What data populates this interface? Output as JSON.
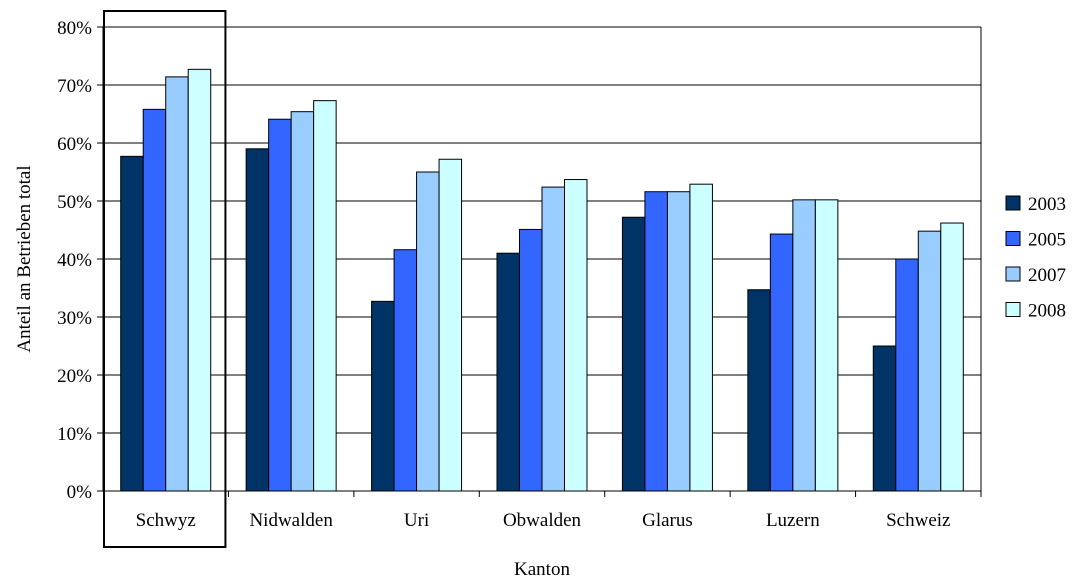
{
  "chart_data": {
    "type": "bar",
    "title": "",
    "xlabel": "Kanton",
    "ylabel": "Anteil an Betrieben total",
    "categories": [
      "Schwyz",
      "Nidwalden",
      "Uri",
      "Obwalden",
      "Glarus",
      "Luzern",
      "Schweiz"
    ],
    "yticks": [
      "0%",
      "10%",
      "20%",
      "30%",
      "40%",
      "50%",
      "60%",
      "70%",
      "80%"
    ],
    "ylim": [
      0,
      80
    ],
    "grid": true,
    "legend_position": "right",
    "highlighted_category": "Schwyz",
    "series": [
      {
        "name": "2003",
        "color": "#003366",
        "values": [
          57.7,
          59.0,
          32.7,
          41.0,
          47.2,
          34.7,
          25.0
        ]
      },
      {
        "name": "2005",
        "color": "#3366ff",
        "values": [
          65.8,
          64.1,
          41.6,
          45.1,
          51.6,
          44.3,
          40.0
        ]
      },
      {
        "name": "2007",
        "color": "#99ccff",
        "values": [
          71.4,
          65.4,
          55.0,
          52.4,
          51.6,
          50.2,
          44.8
        ]
      },
      {
        "name": "2008",
        "color": "#ccffff",
        "values": [
          72.7,
          67.3,
          57.2,
          53.7,
          52.9,
          50.2,
          46.2
        ]
      }
    ]
  }
}
